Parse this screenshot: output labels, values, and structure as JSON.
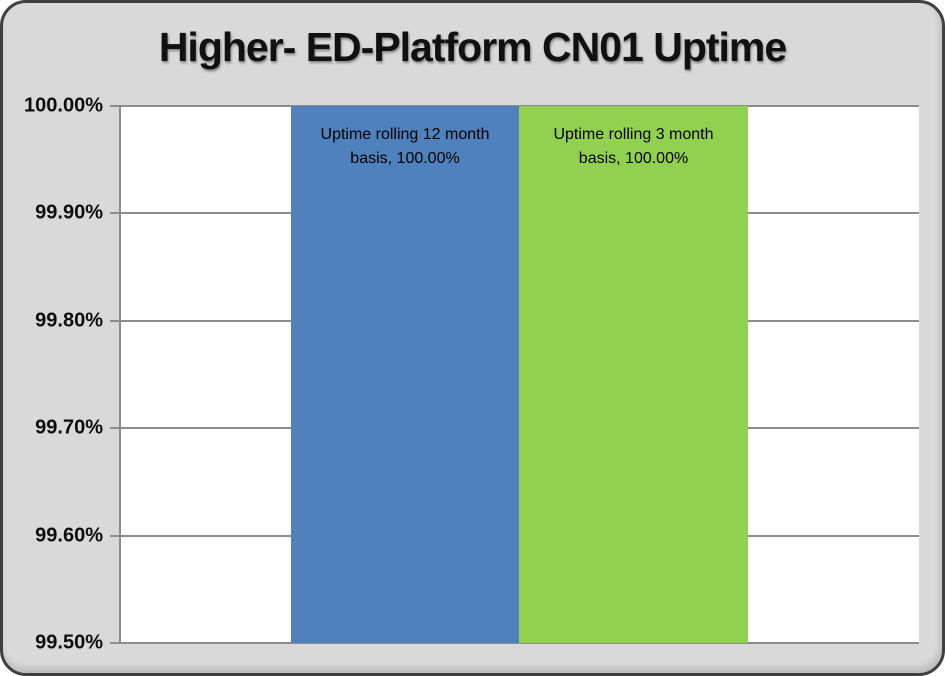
{
  "chart": {
    "title": "Higher- ED-Platform CN01 Uptime"
  },
  "chart_data": {
    "type": "bar",
    "title": "Higher- ED-Platform CN01 Uptime",
    "categories": [
      ""
    ],
    "series": [
      {
        "name": "Uptime rolling 12 month basis",
        "values": [
          100.0
        ],
        "color": "#4F81BD",
        "data_label": "Uptime rolling 12 month basis, 100.00%"
      },
      {
        "name": "Uptime rolling 3 month basis",
        "values": [
          100.0
        ],
        "color": "#92D050",
        "data_label": "Uptime rolling 3 month basis, 100.00%"
      }
    ],
    "xlabel": "",
    "ylabel": "",
    "ylim": [
      99.5,
      100.0
    ],
    "ytick_labels": [
      "100.00%",
      "99.90%",
      "99.80%",
      "99.70%",
      "99.60%",
      "99.50%"
    ],
    "ytick_values": [
      100.0,
      99.9,
      99.8,
      99.7,
      99.6,
      99.5
    ],
    "grid": true,
    "legend_position": "none"
  },
  "colors": {
    "frame_background": "#D9D9D9",
    "frame_border": "#3F3F3F",
    "plot_background": "#FFFFFF",
    "gridline": "#8C8C8C",
    "axis_text": "#0D0D0D",
    "bar_blue": "#4F81BD",
    "bar_green": "#92D050"
  }
}
